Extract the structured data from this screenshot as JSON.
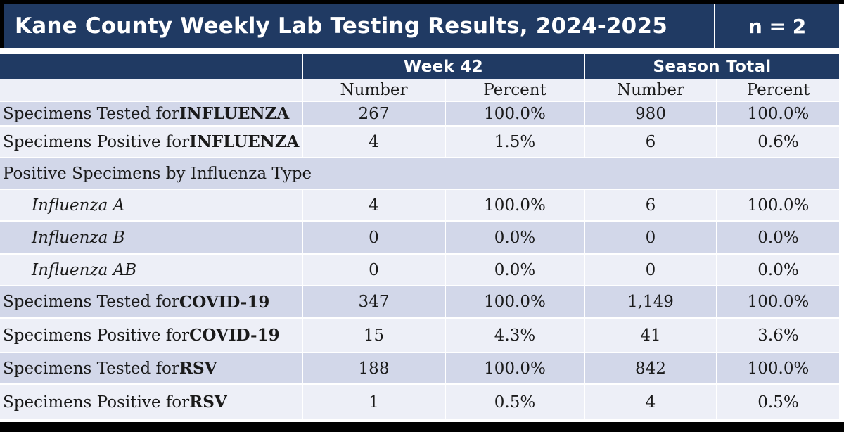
{
  "header": {
    "title": "Kane County Weekly Lab Testing Results, 2024-2025",
    "count": "n = 2"
  },
  "table": {
    "groups": [
      "Week 42",
      "Season Total"
    ],
    "sub_headers": [
      "Number",
      "Percent",
      "Number",
      "Percent"
    ],
    "rows": [
      {
        "prefix": "Specimens Tested for ",
        "emphasis": "INFLUENZA",
        "values": [
          "267",
          "100.0%",
          "980",
          "100.0%"
        ]
      },
      {
        "prefix": "Specimens Positive for ",
        "emphasis": "INFLUENZA",
        "values": [
          "4",
          "1.5%",
          "6",
          "0.6%"
        ]
      },
      {
        "label": "Positive Specimens by Influenza Type",
        "merged": true,
        "values": []
      },
      {
        "label": "Influenza A",
        "italic": true,
        "values": [
          "4",
          "100.0%",
          "6",
          "100.0%"
        ]
      },
      {
        "label": "Influenza B",
        "italic": true,
        "values": [
          "0",
          "0.0%",
          "0",
          "0.0%"
        ]
      },
      {
        "label": "Influenza AB",
        "italic": true,
        "values": [
          "0",
          "0.0%",
          "0",
          "0.0%"
        ]
      },
      {
        "prefix": "Specimens Tested for ",
        "emphasis": "COVID-19",
        "values": [
          "347",
          "100.0%",
          "1,149",
          "100.0%"
        ]
      },
      {
        "prefix": "Specimens Positive for ",
        "emphasis": "COVID-19",
        "values": [
          "15",
          "4.3%",
          "41",
          "3.6%"
        ]
      },
      {
        "prefix": "Specimens Tested for ",
        "emphasis": "RSV",
        "values": [
          "188",
          "100.0%",
          "842",
          "100.0%"
        ]
      },
      {
        "prefix": "Specimens Positive for ",
        "emphasis": "RSV",
        "values": [
          "1",
          "0.5%",
          "4",
          "0.5%"
        ]
      }
    ]
  },
  "colors": {
    "navy": "#203A63",
    "row_dark": "#D2D7E9",
    "row_light": "#EDEFF7",
    "canvas": "#FFFFFF",
    "black": "#000000",
    "header_text": "#FFFFFF",
    "body_text": "#1A1A1A"
  }
}
